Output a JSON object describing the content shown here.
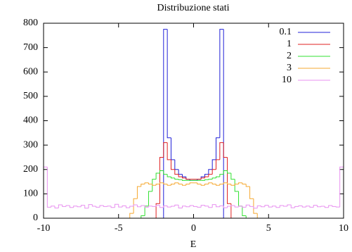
{
  "chart_data": {
    "type": "histogram",
    "title": "Distribuzione stati",
    "x_label": "E",
    "bins": [
      -10,
      -9.75,
      -9.5,
      -9.25,
      -9,
      -8.75,
      -8.5,
      -8.25,
      -8,
      -7.75,
      -7.5,
      -7.25,
      -7,
      -6.75,
      -6.5,
      -6.25,
      -6,
      -5.75,
      -5.5,
      -5.25,
      -5,
      -4.75,
      -4.5,
      -4.25,
      -4,
      -3.75,
      -3.5,
      -3.25,
      -3,
      -2.75,
      -2.5,
      -2.25,
      -2,
      -1.75,
      -1.5,
      -1.25,
      -1,
      -0.75,
      -0.5,
      -0.25,
      0,
      0.25,
      0.5,
      0.75,
      1,
      1.25,
      1.5,
      1.75,
      2,
      2.25,
      2.5,
      2.75,
      3,
      3.25,
      3.5,
      3.75,
      4,
      4.25,
      4.5,
      4.75,
      5,
      5.25,
      5.5,
      5.75,
      6,
      6.25,
      6.5,
      6.75,
      7,
      7.25,
      7.5,
      7.75,
      8,
      8.25,
      8.5,
      8.75,
      9,
      9.25,
      9.5,
      9.75,
      10
    ],
    "series": [
      {
        "name": "0.1",
        "color": "#2020d8",
        "values": [
          0,
          0,
          0,
          0,
          0,
          0,
          0,
          0,
          0,
          0,
          0,
          0,
          0,
          0,
          0,
          0,
          0,
          0,
          0,
          0,
          0,
          0,
          0,
          0,
          0,
          0,
          0,
          0,
          0,
          0,
          0,
          0,
          775,
          330,
          240,
          200,
          180,
          170,
          160,
          155,
          155,
          160,
          170,
          180,
          200,
          240,
          330,
          775,
          0,
          0,
          0,
          0,
          0,
          0,
          0,
          0,
          0,
          0,
          0,
          0,
          0,
          0,
          0,
          0,
          0,
          0,
          0,
          0,
          0,
          0,
          0,
          0,
          0,
          0,
          0,
          0,
          0,
          0,
          0,
          0
        ]
      },
      {
        "name": "1",
        "color": "#e02020",
        "values": [
          0,
          0,
          0,
          0,
          0,
          0,
          0,
          0,
          0,
          0,
          0,
          0,
          0,
          0,
          0,
          0,
          0,
          0,
          0,
          0,
          0,
          0,
          0,
          0,
          0,
          0,
          0,
          0,
          0,
          0,
          60,
          250,
          310,
          240,
          200,
          180,
          170,
          165,
          160,
          160,
          160,
          160,
          165,
          170,
          180,
          200,
          240,
          310,
          250,
          60,
          0,
          0,
          0,
          0,
          0,
          0,
          0,
          0,
          0,
          0,
          0,
          0,
          0,
          0,
          0,
          0,
          0,
          0,
          0,
          0,
          0,
          0,
          0,
          0,
          0,
          0,
          0,
          0,
          0,
          0
        ]
      },
      {
        "name": "2",
        "color": "#30e030",
        "values": [
          0,
          0,
          0,
          0,
          0,
          0,
          0,
          0,
          0,
          0,
          0,
          0,
          0,
          0,
          0,
          0,
          0,
          0,
          0,
          0,
          0,
          0,
          0,
          0,
          0,
          0,
          10,
          50,
          110,
          160,
          185,
          195,
          180,
          170,
          165,
          160,
          158,
          155,
          155,
          155,
          155,
          155,
          155,
          158,
          160,
          165,
          170,
          180,
          195,
          185,
          160,
          110,
          50,
          10,
          0,
          0,
          0,
          0,
          0,
          0,
          0,
          0,
          0,
          0,
          0,
          0,
          0,
          0,
          0,
          0,
          0,
          0,
          0,
          0,
          0,
          0,
          0,
          0,
          0,
          0
        ]
      },
      {
        "name": "3",
        "color": "#f5a830",
        "values": [
          0,
          0,
          0,
          0,
          0,
          0,
          0,
          0,
          0,
          0,
          0,
          0,
          0,
          0,
          0,
          0,
          0,
          0,
          0,
          0,
          0,
          0,
          0,
          20,
          80,
          130,
          140,
          145,
          140,
          135,
          140,
          145,
          140,
          135,
          140,
          145,
          140,
          135,
          140,
          145,
          145,
          140,
          135,
          140,
          145,
          140,
          135,
          140,
          145,
          140,
          135,
          140,
          145,
          140,
          130,
          80,
          20,
          0,
          0,
          0,
          0,
          0,
          0,
          0,
          0,
          0,
          0,
          0,
          0,
          0,
          0,
          0,
          0,
          0,
          0,
          0,
          0,
          0,
          0,
          0
        ]
      },
      {
        "name": "10",
        "color": "#e890f0",
        "values": [
          210,
          45,
          50,
          42,
          55,
          48,
          52,
          44,
          50,
          47,
          53,
          41,
          56,
          49,
          45,
          52,
          48,
          50,
          44,
          57,
          46,
          51,
          43,
          49,
          55,
          47,
          52,
          45,
          50,
          48,
          53,
          44,
          51,
          46,
          49,
          54,
          42,
          50,
          47,
          52,
          48,
          45,
          53,
          50,
          44,
          56,
          47,
          51,
          43,
          49,
          52,
          46,
          50,
          45,
          54,
          48,
          41,
          51,
          47,
          53,
          46,
          50,
          44,
          52,
          49,
          55,
          43,
          48,
          51,
          46,
          50,
          45,
          53,
          47,
          49,
          44,
          52,
          48,
          46,
          210
        ]
      }
    ],
    "xlim": [
      -10,
      10
    ],
    "xticks": [
      -10,
      -5,
      0,
      5,
      10
    ],
    "ylim": [
      0,
      800
    ],
    "yticks": [
      0,
      100,
      200,
      300,
      400,
      500,
      600,
      700,
      800
    ],
    "legend": "top-right"
  }
}
